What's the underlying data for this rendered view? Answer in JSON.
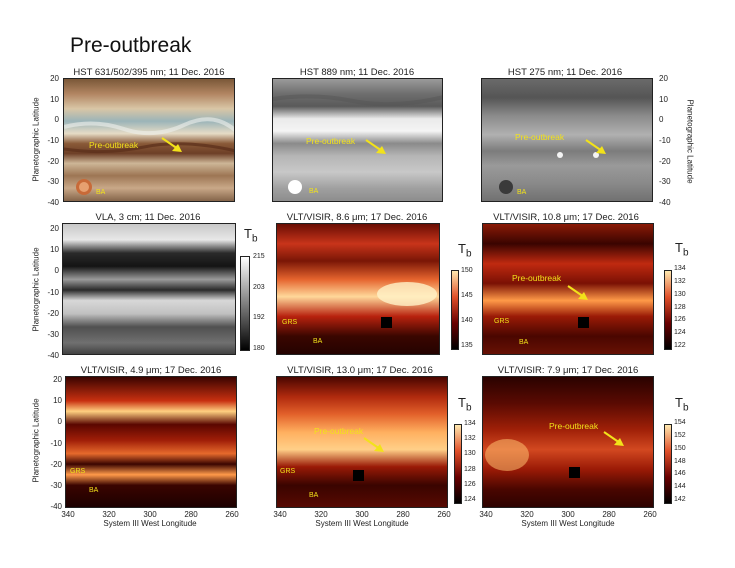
{
  "page_title": "Pre-outbreak",
  "panels": {
    "p1": {
      "title": "HST 631/502/395 nm; 11 Dec. 2016"
    },
    "p2": {
      "title": "HST 889 nm; 11 Dec. 2016"
    },
    "p3": {
      "title": "HST 275 nm; 11 Dec. 2016"
    },
    "p4": {
      "title": "VLA, 3 cm; 11 Dec. 2016",
      "colorbar": [
        "215",
        "203",
        "192",
        "180"
      ]
    },
    "p5": {
      "title": "VLT/VISIR, 8.6 μm; 17 Dec. 2016",
      "colorbar": [
        "150",
        "145",
        "140",
        "135"
      ]
    },
    "p6": {
      "title": "VLT/VISIR, 10.8 μm; 17 Dec. 2016",
      "colorbar": [
        "134",
        "132",
        "130",
        "128",
        "126",
        "124",
        "122"
      ]
    },
    "p7": {
      "title": "VLT/VISIR, 4.9 μm; 17 Dec. 2016"
    },
    "p8": {
      "title": "VLT/VISIR, 13.0 μm; 17 Dec. 2016",
      "colorbar": [
        "134",
        "132",
        "130",
        "128",
        "126",
        "124"
      ]
    },
    "p9": {
      "title": "VLT/VISIR: 7.9 μm; 17 Dec. 2016",
      "colorbar": [
        "154",
        "152",
        "150",
        "148",
        "146",
        "144",
        "142"
      ]
    }
  },
  "axes": {
    "ylabel": "Planetographic Latitude",
    "xlabel": "System III West Longitude",
    "lat_ticks": [
      "20",
      "10",
      "0",
      "-10",
      "-20",
      "-30",
      "-40"
    ],
    "lon_ticks": [
      "340",
      "320",
      "300",
      "280",
      "260"
    ]
  },
  "annotations": {
    "outbreak": "Pre-outbreak",
    "ba": "BA",
    "grs": "GRS"
  },
  "tb_label": "T",
  "tb_sub": "b",
  "colors": {
    "annotation": "#f2e21a",
    "heat_dark": "#2a0000",
    "heat_mid": "#b8220e",
    "heat_bright": "#ffe9b0"
  }
}
